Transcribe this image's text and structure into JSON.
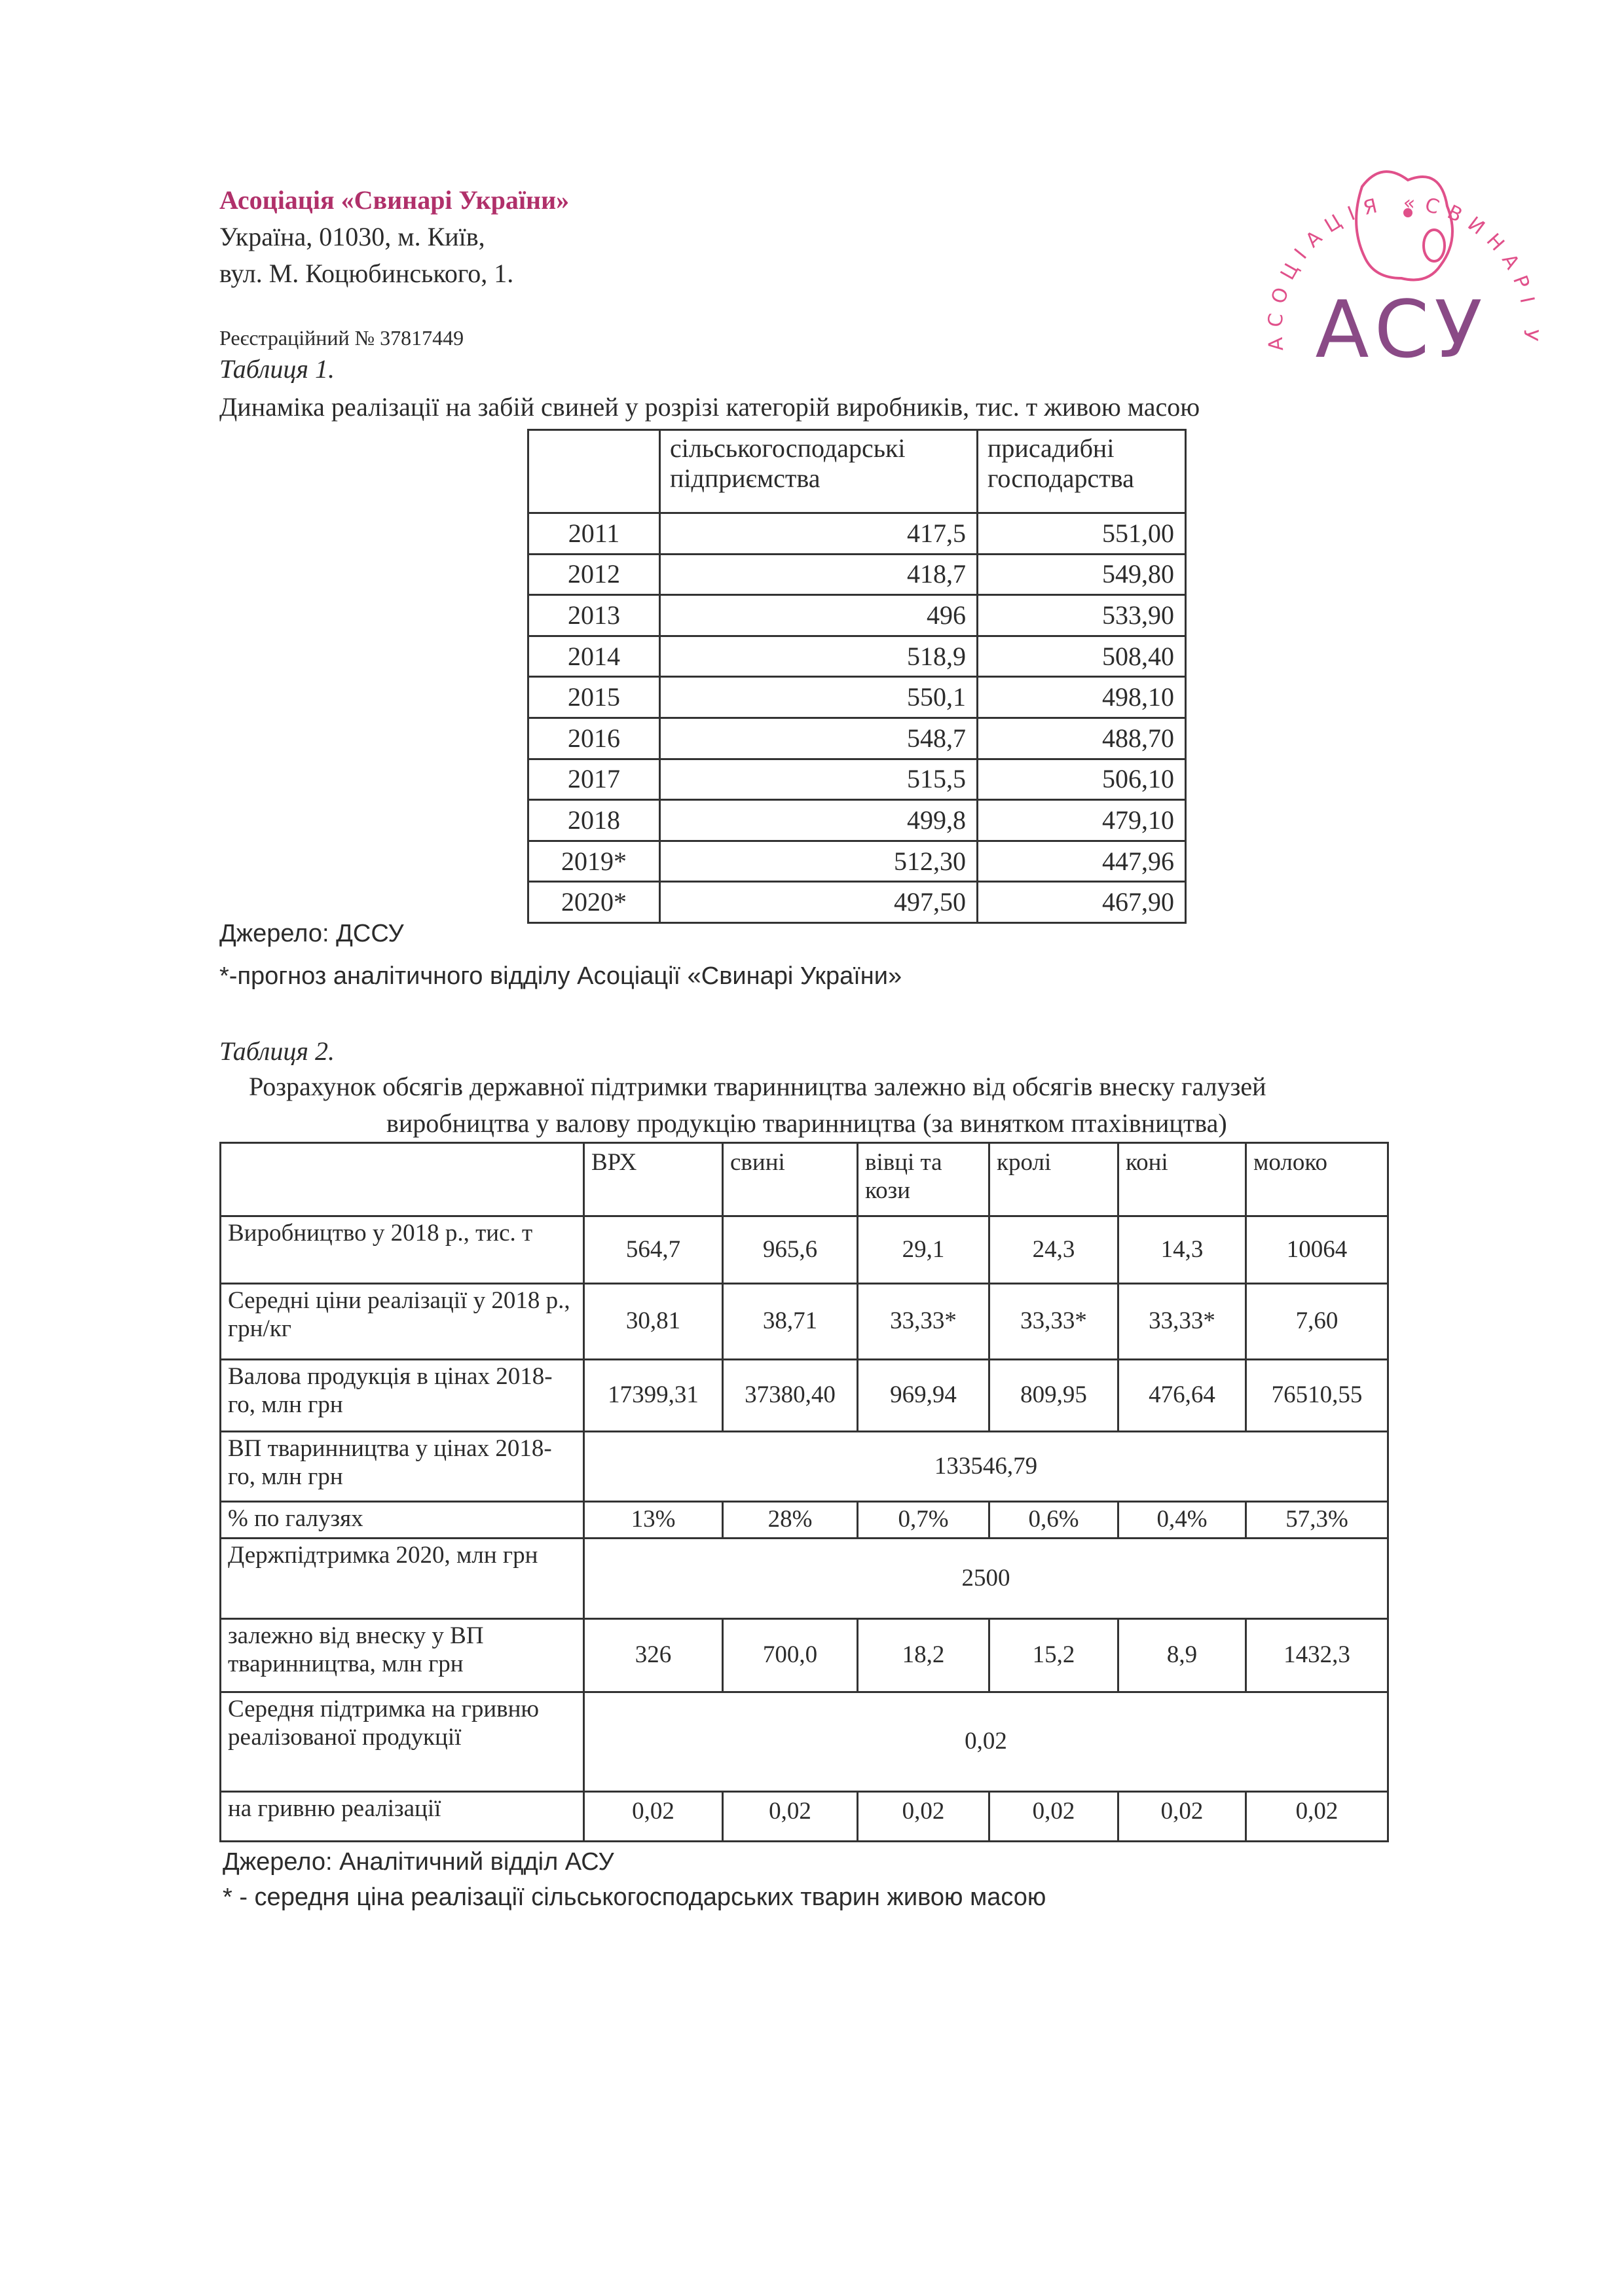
{
  "header": {
    "org_name": "Асоціація «Свинарі України»",
    "address_line1": "Україна, 01030, м. Київ,",
    "address_line2": "вул. М. Коцюбинського, 1.",
    "registration": "Реєстраційний № 37817449"
  },
  "logo": {
    "ring_text": "АСОЦІАЦІЯ «СВИНАРІ УКРАЇНИ»",
    "monogram": "АСУ",
    "colors": {
      "pink": "#e0508a",
      "purple": "#8a4a86"
    }
  },
  "table1": {
    "caption": "Таблиця 1.",
    "title": "Динаміка реалізації на забій свиней у розрізі категорій виробників, тис. т живою масою",
    "columns": [
      "",
      "сільськогосподарські підприємства",
      "присадибні господарства"
    ],
    "rows": [
      [
        "2011",
        "417,5",
        "551,00"
      ],
      [
        "2012",
        "418,7",
        "549,80"
      ],
      [
        "2013",
        "496",
        "533,90"
      ],
      [
        "2014",
        "518,9",
        "508,40"
      ],
      [
        "2015",
        "550,1",
        "498,10"
      ],
      [
        "2016",
        "548,7",
        "488,70"
      ],
      [
        "2017",
        "515,5",
        "506,10"
      ],
      [
        "2018",
        "499,8",
        "479,10"
      ],
      [
        "2019*",
        "512,30",
        "447,96"
      ],
      [
        "2020*",
        "497,50",
        "467,90"
      ]
    ],
    "source": "Джерело: ДССУ",
    "note": "*-прогноз аналітичного відділу Асоціації «Свинарі України»"
  },
  "table2": {
    "caption": "Таблиця 2.",
    "title_line1": "Розрахунок обсягів державної підтримки тваринництва залежно від обсягів внеску галузей",
    "title_line2": "виробництва у валову продукцію тваринництва (за винятком птахівництва)",
    "columns": [
      "",
      "ВРХ",
      "свині",
      "вівці та кози",
      "кролі",
      "коні",
      "молоко"
    ],
    "rows": [
      {
        "label": "Виробництво у 2018 р., тис. т",
        "values": [
          "564,7",
          "965,6",
          "29,1",
          "24,3",
          "14,3",
          "10064"
        ]
      },
      {
        "label": "Середні ціни реалізації у 2018 р., грн/кг",
        "values": [
          "30,81",
          "38,71",
          "33,33*",
          "33,33*",
          "33,33*",
          "7,60"
        ]
      },
      {
        "label": "Валова продукція в цінах 2018-го, млн грн",
        "values": [
          "17399,31",
          "37380,40",
          "969,94",
          "809,95",
          "476,64",
          "76510,55"
        ]
      },
      {
        "label": "ВП тваринництва у цінах 2018-го, млн грн",
        "merged": "133546,79"
      },
      {
        "label": "% по галузях",
        "values": [
          "13%",
          "28%",
          "0,7%",
          "0,6%",
          "0,4%",
          "57,3%"
        ]
      },
      {
        "label": "Держпідтримка 2020, млн грн",
        "merged": "2500"
      },
      {
        "label": "залежно від внеску у ВП тваринництва, млн грн",
        "values": [
          "326",
          "700,0",
          "18,2",
          "15,2",
          "8,9",
          "1432,3"
        ]
      },
      {
        "label": "Середня підтримка на гривню реалізованої продукції",
        "merged": "0,02"
      },
      {
        "label": "на гривню реалізації",
        "values": [
          "0,02",
          "0,02",
          "0,02",
          "0,02",
          "0,02",
          "0,02"
        ]
      }
    ],
    "source": "Джерело: Аналітичний відділ АСУ",
    "note": "* - середня ціна реалізації сільськогосподарських тварин живою масою"
  }
}
